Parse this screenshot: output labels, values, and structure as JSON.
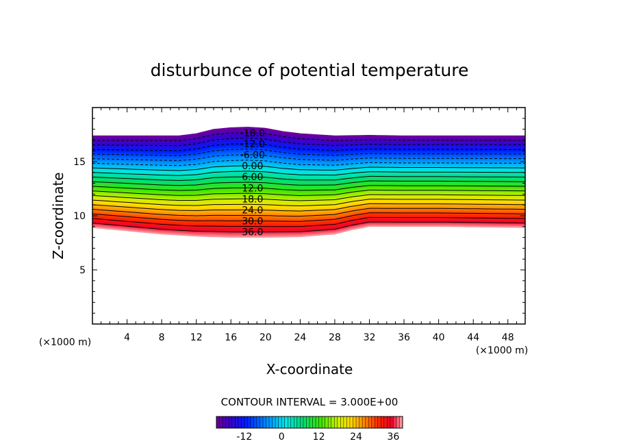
{
  "chart_data": {
    "type": "contour",
    "title": "disturbunce of potential temperature",
    "xlabel": "X-coordinate",
    "ylabel": "Z-coordinate",
    "x_unit": "(×1000 m)",
    "z_unit": "(×1000 m)",
    "xlim": [
      0,
      50
    ],
    "zlim": [
      0,
      20
    ],
    "x_ticks": [
      4,
      8,
      12,
      16,
      20,
      24,
      28,
      32,
      36,
      40,
      44,
      48
    ],
    "z_ticks": [
      5,
      10,
      15
    ],
    "contour_interval_text": "CONTOUR INTERVAL = 3.000E+00",
    "contour_levels": [
      -18,
      -15,
      -12,
      -9,
      -6,
      -3,
      0,
      3,
      6,
      9,
      12,
      15,
      18,
      21,
      24,
      27,
      30,
      33,
      36
    ],
    "value_range": [
      -21,
      39
    ],
    "contour_labels": [
      "-18.0",
      "-12.0",
      "-6.00",
      "0.00",
      "6.00",
      "12.0",
      "18.0",
      "24.0",
      "30.0",
      "36.0"
    ],
    "colorbar_ticks": [
      "-12",
      "0",
      "12",
      "24",
      "36"
    ],
    "colorbar_tick_values": [
      -12,
      0,
      12,
      24,
      36
    ],
    "colorbar_range": [
      -21,
      39
    ],
    "top_boundary": [
      [
        0,
        17.4
      ],
      [
        8,
        17.4
      ],
      [
        10,
        17.4
      ],
      [
        12,
        17.6
      ],
      [
        14,
        18.0
      ],
      [
        16,
        18.15
      ],
      [
        18,
        18.2
      ],
      [
        20,
        18.1
      ],
      [
        22,
        17.8
      ],
      [
        24,
        17.6
      ],
      [
        28,
        17.4
      ],
      [
        32,
        17.45
      ],
      [
        36,
        17.4
      ],
      [
        50,
        17.4
      ]
    ],
    "bottom_boundary": [
      [
        0,
        8.9
      ],
      [
        4,
        8.6
      ],
      [
        8,
        8.3
      ],
      [
        12,
        8.1
      ],
      [
        16,
        8.0
      ],
      [
        20,
        8.0
      ],
      [
        24,
        8.05
      ],
      [
        28,
        8.3
      ],
      [
        30,
        8.7
      ],
      [
        32,
        9.0
      ],
      [
        40,
        9.0
      ],
      [
        50,
        8.9
      ]
    ]
  }
}
